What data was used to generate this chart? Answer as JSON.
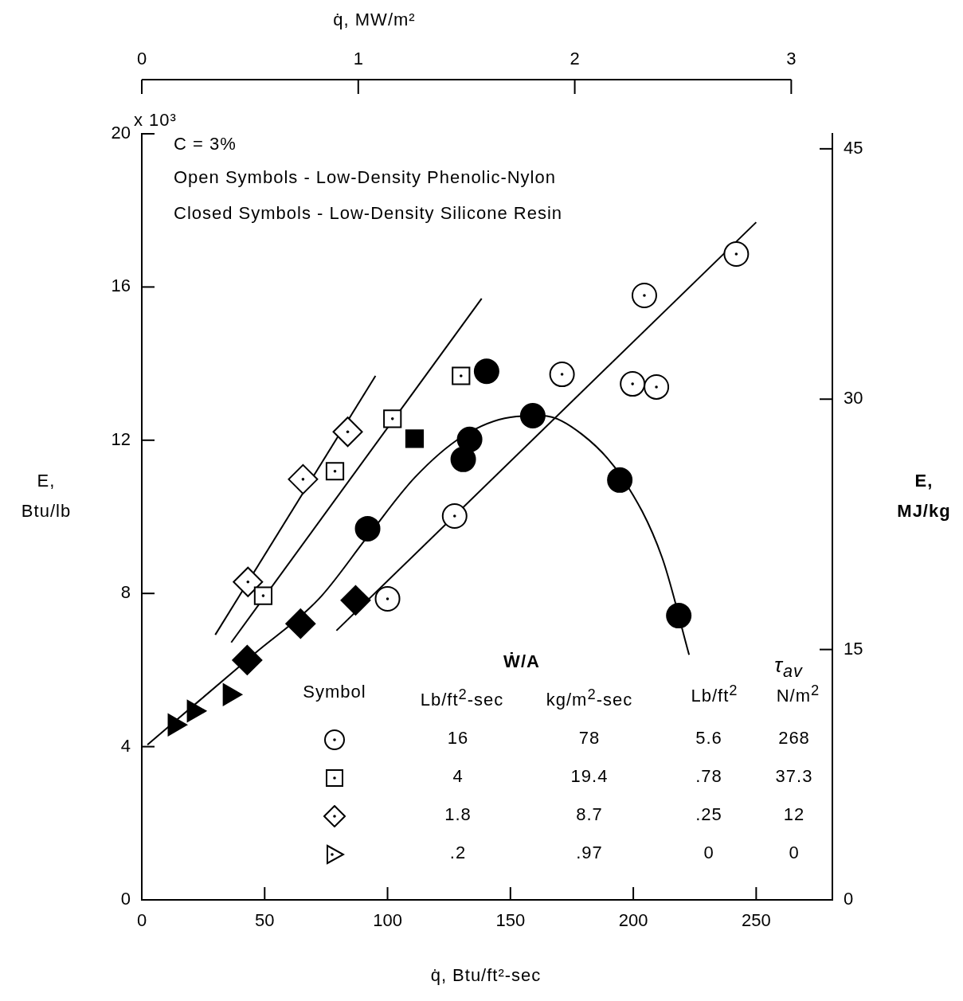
{
  "chart_data": {
    "type": "scatter",
    "xlabel": "q̇, Btu/ft²-sec",
    "x2label": "q̇, MW/m²",
    "ylabel": "E, Btu/lb",
    "y2label": "E, MJ/kg",
    "xlim": [
      0,
      281
    ],
    "xticks": [
      0,
      50,
      100,
      150,
      200,
      250
    ],
    "x2lim": [
      0,
      3.19
    ],
    "x2ticks": [
      0,
      1,
      2,
      3
    ],
    "ylim": [
      0,
      20
    ],
    "yticks": [
      0,
      4,
      8,
      12,
      16,
      20
    ],
    "y2lim": [
      0,
      45.9
    ],
    "y2ticks": [
      0,
      15,
      30,
      45
    ],
    "grid": false,
    "series": [
      {
        "marker": "circle",
        "color": "#ffffff",
        "x": [
          100,
          127.3,
          171,
          199.7,
          209.4,
          204.5,
          241.9
        ],
        "values": [
          7.86,
          10.02,
          13.72,
          13.47,
          13.39,
          15.78,
          16.86
        ]
      },
      {
        "marker": "square",
        "color": "#ffffff",
        "x": [
          49.4,
          78.6,
          102,
          129.9
        ],
        "values": [
          7.94,
          11.19,
          12.56,
          13.68
        ]
      },
      {
        "marker": "diamond",
        "color": "#ffffff",
        "x": [
          43.2,
          65.6,
          83.8
        ],
        "values": [
          8.3,
          10.98,
          12.22
        ]
      },
      {
        "marker": "triangle",
        "color": "#000000",
        "x": [
          13.3,
          21.1,
          35.7
        ],
        "values": [
          4.57,
          4.93,
          5.36
        ]
      },
      {
        "marker": "diamond",
        "color": "#000000",
        "x": [
          42.9,
          64.6,
          87
        ],
        "values": [
          6.26,
          7.21,
          7.82
        ]
      },
      {
        "marker": "circle",
        "color": "#000000",
        "x": [
          91.9,
          130.8,
          133.4,
          140.3,
          159.1,
          194.5,
          218.5
        ],
        "values": [
          9.69,
          11.5,
          12.02,
          13.8,
          12.64,
          10.96,
          7.42
        ]
      },
      {
        "marker": "square",
        "color": "#000000",
        "x": [
          111
        ],
        "values": [
          12.04
        ]
      },
      {
        "type": "line",
        "marker": "none",
        "color": "#000000",
        "x": [
          29.9,
          95.1
        ],
        "values": [
          6.92,
          13.68
        ]
      },
      {
        "type": "line",
        "marker": "none",
        "color": "#000000",
        "x": [
          36.4,
          138.3
        ],
        "values": [
          6.72,
          15.7
        ]
      },
      {
        "type": "line",
        "marker": "none",
        "color": "#000000",
        "x": [
          79.2,
          250
        ],
        "values": [
          7.03,
          17.69
        ]
      },
      {
        "type": "line",
        "marker": "none",
        "color": "#000000",
        "x": [
          2.3,
          23.4,
          46.1,
          72.1,
          91.6,
          111,
          130.5,
          150,
          163,
          179,
          195.5,
          211.7,
          222.7
        ],
        "values": [
          4.05,
          5.2,
          6.44,
          7.86,
          9.46,
          11.02,
          12.1,
          12.6,
          12.64,
          12.16,
          11.02,
          8.94,
          6.4
        ]
      }
    ],
    "annotations": [
      "x 10³",
      "C = 3%",
      "Open Symbols - Low-Density Phenolic-Nylon",
      "Closed Symbols - Low-Density Silicone Resin",
      "Symbol",
      "Ẇ/A",
      "τ$_{av}$",
      "Lb/ft$^{2}$-sec",
      "kg/m$^{2}$-sec",
      "Lb/ft$^{2}$",
      "N/m$^{2}$",
      "16",
      "78",
      "5.6",
      "268",
      "4",
      "19.4",
      ".78",
      "37.3",
      "1.8",
      "8.7",
      ".25",
      "12",
      ".2",
      ".97",
      "0",
      "0"
    ]
  }
}
